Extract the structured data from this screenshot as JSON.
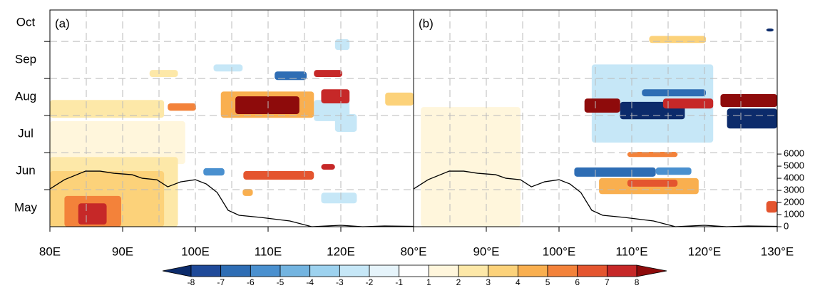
{
  "chart_data": {
    "type": "heatmap",
    "ylim": [
      0,
      5.85
    ],
    "yticks": [
      {
        "value": 0.5,
        "label": "May"
      },
      {
        "value": 1.5,
        "label": "Jun"
      },
      {
        "value": 2.5,
        "label": "Jul"
      },
      {
        "value": 3.5,
        "label": "Aug"
      },
      {
        "value": 4.5,
        "label": "Sep"
      },
      {
        "value": 5.5,
        "label": "Oct"
      }
    ],
    "ygrid": [
      1,
      2,
      3,
      4,
      5
    ],
    "xgrid": [
      85,
      90,
      95,
      100,
      105,
      110,
      115,
      120,
      125
    ],
    "elevation": {
      "lon": [
        80,
        82,
        84.9,
        86.9,
        88.8,
        91.3,
        92.7,
        94.7,
        96.2,
        98,
        100,
        101.5,
        103,
        104.5,
        106,
        109,
        113,
        116,
        120,
        123,
        126,
        130
      ],
      "values": [
        3118,
        3882,
        4588,
        4588,
        4412,
        4294,
        4000,
        3882,
        3294,
        3706,
        3882,
        3529,
        2824,
        1353,
        941,
        765,
        471,
        0,
        118,
        0,
        60,
        30
      ]
    },
    "panels": [
      {
        "label": "(a)",
        "xlim": [
          80,
          130
        ],
        "xticks": [
          {
            "value": 80,
            "label": "80E"
          },
          {
            "value": 90,
            "label": "90E"
          },
          {
            "value": 100,
            "label": "100E"
          },
          {
            "value": 110,
            "label": "110E"
          },
          {
            "value": 120,
            "label": "120E"
          }
        ],
        "patches": [
          {
            "lon": [
              80,
              98.6
            ],
            "time": [
              1.69,
              2.85
            ],
            "value": 1.5
          },
          {
            "lon": [
              80,
              95.7
            ],
            "time": [
              2.94,
              3.42
            ],
            "value": 2.5
          },
          {
            "lon": [
              80,
              97.6
            ],
            "time": [
              0,
              1.88
            ],
            "value": 2.5
          },
          {
            "lon": [
              80,
              95.7
            ],
            "time": [
              0,
              1.5
            ],
            "value": 3.5
          },
          {
            "lon": [
              82,
              89.8
            ],
            "time": [
              0,
              0.83
            ],
            "value": 5.5
          },
          {
            "lon": [
              83.9,
              87.8
            ],
            "time": [
              0.06,
              0.63
            ],
            "value": 7.5
          },
          {
            "lon": [
              96.2,
              100.1
            ],
            "time": [
              3.13,
              3.33
            ],
            "value": 5.5
          },
          {
            "lon": [
              116.3,
              121.2
            ],
            "time": [
              2.85,
              3.42
            ],
            "value": -2.5
          },
          {
            "lon": [
              119.2,
              122.2
            ],
            "time": [
              2.56,
              3.04
            ],
            "value": -2.5
          },
          {
            "lon": [
              103.5,
              116.3
            ],
            "time": [
              2.94,
              3.65
            ],
            "value": 4.5
          },
          {
            "lon": [
              105.5,
              114.3
            ],
            "time": [
              3.04,
              3.52
            ],
            "value": 8.5
          },
          {
            "lon": [
              117.3,
              121.2
            ],
            "time": [
              3.33,
              3.71
            ],
            "value": 7.5
          },
          {
            "lon": [
              116.3,
              120.2
            ],
            "time": [
              4.04,
              4.23
            ],
            "value": 7.5
          },
          {
            "lon": [
              110.9,
              115.3
            ],
            "time": [
              3.96,
              4.19
            ],
            "value": -6.5
          },
          {
            "lon": [
              106.6,
              116.3
            ],
            "time": [
              1.27,
              1.5
            ],
            "value": 6.5
          },
          {
            "lon": [
              117.3,
              119.2
            ],
            "time": [
              1.54,
              1.69
            ],
            "value": 7.5
          },
          {
            "lon": [
              101.1,
              104
            ],
            "time": [
              1.38,
              1.58
            ],
            "value": -5.5
          },
          {
            "lon": [
              126.1,
              130
            ],
            "time": [
              3.27,
              3.62
            ],
            "value": 3.5
          },
          {
            "lon": [
              117.3,
              122.2
            ],
            "time": [
              0.63,
              0.92
            ],
            "value": -2.5
          },
          {
            "lon": [
              106.5,
              107.9
            ],
            "time": [
              0.83,
              1.02
            ],
            "value": 4.5
          },
          {
            "lon": [
              102.5,
              106.5
            ],
            "time": [
              4.19,
              4.38
            ],
            "value": -2.5
          },
          {
            "lon": [
              93.7,
              97.6
            ],
            "time": [
              4.04,
              4.23
            ],
            "value": 2.5
          },
          {
            "lon": [
              119.2,
              121.2
            ],
            "time": [
              4.77,
              5.06
            ],
            "value": -2.5
          }
        ]
      },
      {
        "label": "(b)",
        "xlim": [
          80,
          130
        ],
        "xticks": [
          {
            "value": 80,
            "label": "80°E"
          },
          {
            "value": 90,
            "label": "90°E"
          },
          {
            "value": 100,
            "label": "100°E"
          },
          {
            "value": 110,
            "label": "110°E"
          },
          {
            "value": 120,
            "label": "120°E"
          },
          {
            "value": 130,
            "label": "130°E"
          }
        ],
        "y2lim": [
          0,
          17900
        ],
        "y2ticks": [
          0,
          1000,
          2000,
          3000,
          4000,
          5000,
          6000
        ],
        "patches": [
          {
            "lon": [
              81,
              94.7
            ],
            "time": [
              0,
              3.23
            ],
            "value": 1.5
          },
          {
            "lon": [
              104.5,
              121.2
            ],
            "time": [
              2.27,
              4.38
            ],
            "value": -2.5
          },
          {
            "lon": [
              112.4,
              120.2
            ],
            "time": [
              4.96,
              5.15
            ],
            "value": 3.5
          },
          {
            "lon": [
              111.4,
              120.2
            ],
            "time": [
              3.52,
              3.71
            ],
            "value": -6.5
          },
          {
            "lon": [
              108.4,
              117.3
            ],
            "time": [
              2.9,
              3.37
            ],
            "value": -8.5
          },
          {
            "lon": [
              103.5,
              108.4
            ],
            "time": [
              3.08,
              3.46
            ],
            "value": 8.5
          },
          {
            "lon": [
              114.3,
              121.2
            ],
            "time": [
              3.19,
              3.46
            ],
            "value": 7.5
          },
          {
            "lon": [
              122.2,
              130
            ],
            "time": [
              3.23,
              3.58
            ],
            "value": 8.5
          },
          {
            "lon": [
              123.1,
              130
            ],
            "time": [
              2.65,
              3.19
            ],
            "value": -8.5
          },
          {
            "lon": [
              105.5,
              119.2
            ],
            "time": [
              0.88,
              1.31
            ],
            "value": 4.5
          },
          {
            "lon": [
              109.4,
              116.3
            ],
            "time": [
              1.08,
              1.27
            ],
            "value": 6.5
          },
          {
            "lon": [
              102.1,
              113.3
            ],
            "time": [
              1.35,
              1.6
            ],
            "value": -6.5
          },
          {
            "lon": [
              113.3,
              118.2
            ],
            "time": [
              1.4,
              1.6
            ],
            "value": -5.5
          },
          {
            "lon": [
              109.4,
              116.3
            ],
            "time": [
              1.88,
              2.02
            ],
            "value": 5.5
          },
          {
            "lon": [
              128.5,
              129.5
            ],
            "time": [
              5.27,
              5.35
            ],
            "value": -8.5
          },
          {
            "lon": [
              128.5,
              130
            ],
            "time": [
              0.38,
              0.69
            ],
            "value": 6.5
          }
        ]
      }
    ],
    "colorbar": {
      "levels": [
        -8,
        -7,
        -6,
        -5,
        -4,
        -3,
        -2,
        -1,
        1,
        2,
        3,
        4,
        5,
        6,
        7,
        8
      ],
      "colors": [
        "#0c2b6b",
        "#1f4a99",
        "#2e6db4",
        "#4a90cf",
        "#73b4e0",
        "#9dd2ef",
        "#c6e7f7",
        "#e6f4fb",
        "#ffffff",
        "#fff6dc",
        "#fde8a8",
        "#fcd27a",
        "#f9af4f",
        "#f3823a",
        "#e4552f",
        "#c62828",
        "#8e0b0b"
      ]
    }
  }
}
